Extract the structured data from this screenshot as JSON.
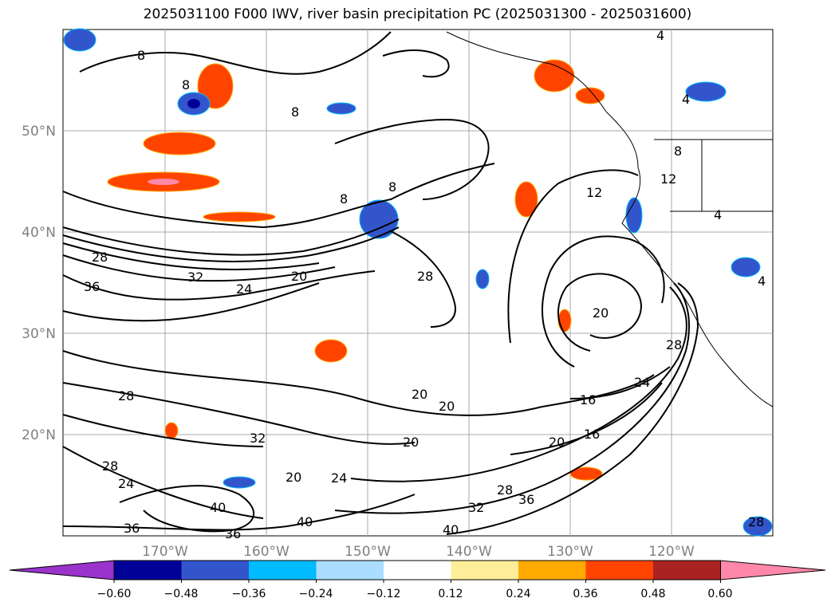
{
  "title": "2025031100 F000 IWV, river basin precipitation PC (2025031300 - 2025031600)",
  "map": {
    "lon_labels": [
      "170°W",
      "160°W",
      "150°W",
      "140°W",
      "130°W",
      "120°W"
    ],
    "lat_labels": [
      "50°N",
      "40°N",
      "30°N",
      "20°N"
    ],
    "contour_labels": [
      "8",
      "8",
      "8",
      "8",
      "8",
      "8",
      "4",
      "4",
      "4",
      "4",
      "12",
      "12",
      "28",
      "28",
      "28",
      "28",
      "28",
      "28",
      "32",
      "32",
      "32",
      "36",
      "36",
      "36",
      "36",
      "24",
      "24",
      "24",
      "24",
      "20",
      "20",
      "20",
      "20",
      "20",
      "20",
      "20",
      "16",
      "16",
      "40",
      "40",
      "40",
      "28"
    ],
    "colors": {
      "label_gray": "#808080",
      "grid": "#aaaaaa",
      "frame": "#000000"
    }
  },
  "colorbar": {
    "tick_labels": [
      "−0.60",
      "−0.48",
      "−0.36",
      "−0.24",
      "−0.12",
      "0.12",
      "0.24",
      "0.36",
      "0.48",
      "0.60"
    ],
    "segment_colors": [
      "#9933cc",
      "#000099",
      "#3355cc",
      "#00bbff",
      "#aaddff",
      "#ffffff",
      "#ffee99",
      "#ffaa00",
      "#ff4400",
      "#aa2222",
      "#ff88aa"
    ]
  }
}
